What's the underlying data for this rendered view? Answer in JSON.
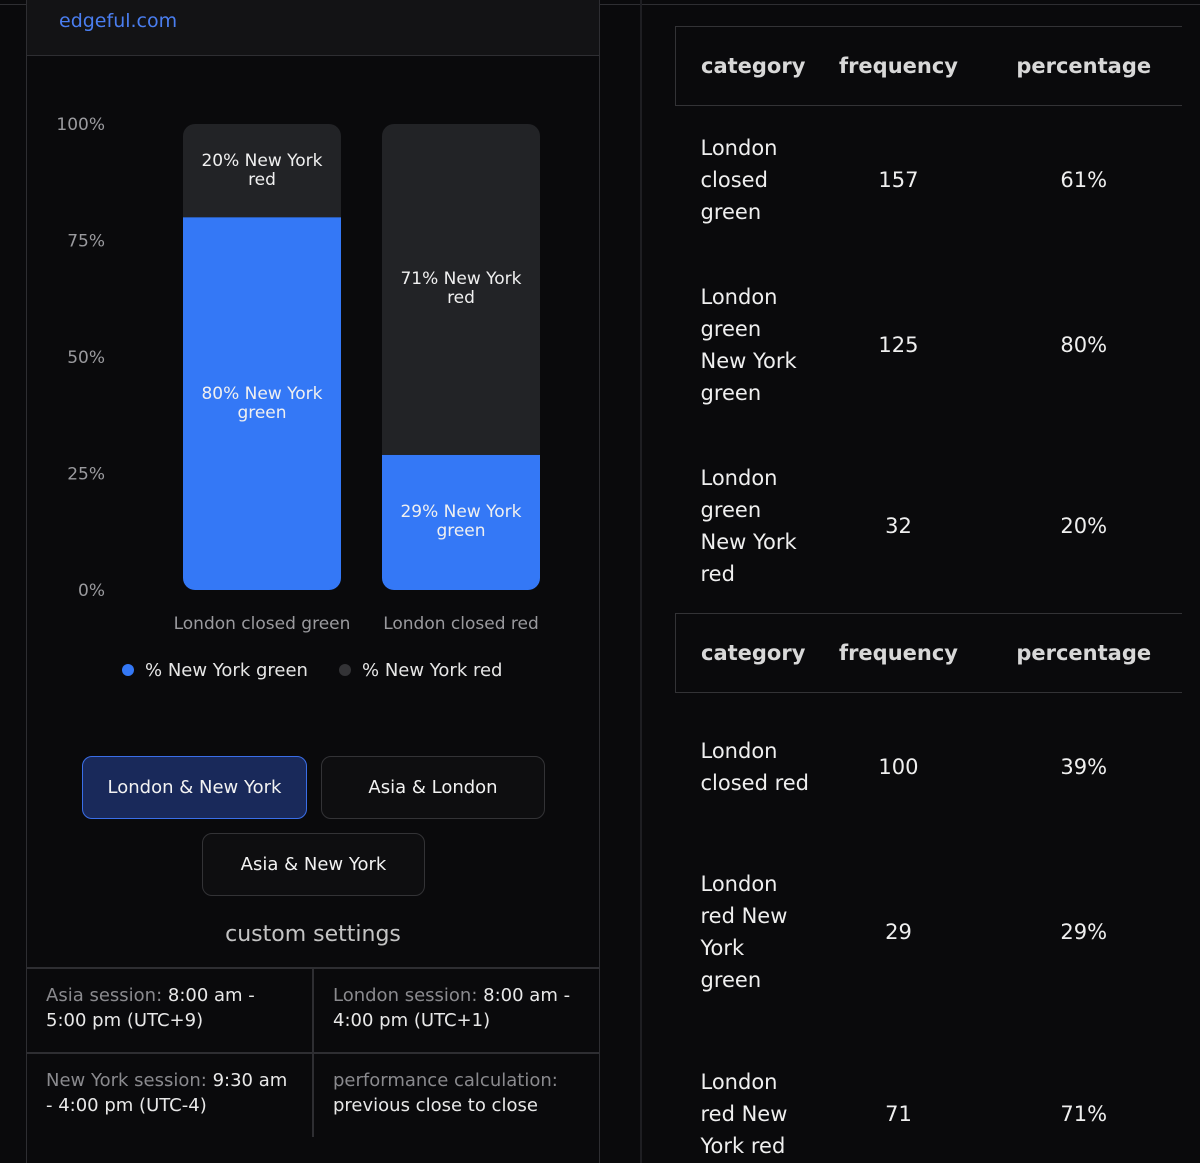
{
  "header": {
    "link": "edgeful.com"
  },
  "chart_data": {
    "type": "stacked_bar",
    "categories": [
      "London closed green",
      "London closed red"
    ],
    "series": [
      {
        "name": "% New York green",
        "color": "#3478f6",
        "values": [
          80,
          29
        ],
        "value_labels": [
          "80% New York green",
          "29% New York green"
        ]
      },
      {
        "name": "% New York red",
        "color": "#222326",
        "legend_color": "#333336",
        "values": [
          20,
          71
        ],
        "value_labels": [
          "20% New York red",
          "71% New York red"
        ]
      }
    ],
    "ylim": [
      0,
      100
    ],
    "yticks": [
      {
        "value": 0,
        "label": "0%"
      },
      {
        "value": 25,
        "label": "25%"
      },
      {
        "value": 50,
        "label": "50%"
      },
      {
        "value": 75,
        "label": "75%"
      },
      {
        "value": 100,
        "label": "100%"
      }
    ]
  },
  "buttons": [
    "London & New York",
    "Asia & London",
    "Asia & New York"
  ],
  "settings": {
    "title": "custom settings",
    "items": [
      {
        "label": "Asia session:",
        "value": "8:00 am - 5:00 pm (UTC+9)"
      },
      {
        "label": "London session:",
        "value": "8:00 am - 4:00 pm (UTC+1)"
      },
      {
        "label": "New York session:",
        "value": "9:30 am - 4:00 pm (UTC-4)"
      },
      {
        "label": "performance calculation:",
        "value": "previous close to close"
      }
    ]
  },
  "tables": [
    {
      "header": [
        "category",
        "frequency",
        "percentage"
      ],
      "rows": [
        [
          "London closed green",
          157,
          "61%"
        ],
        [
          "London green New York green",
          125,
          "80%"
        ],
        [
          "London green New York red",
          32,
          "20%"
        ]
      ]
    },
    {
      "header": [
        "category",
        "frequency",
        "percentage"
      ],
      "rows": [
        [
          "London closed red",
          100,
          "39%"
        ],
        [
          "London red New York green",
          29,
          "29%"
        ],
        [
          "London red New York red",
          71,
          "71%"
        ]
      ]
    }
  ]
}
